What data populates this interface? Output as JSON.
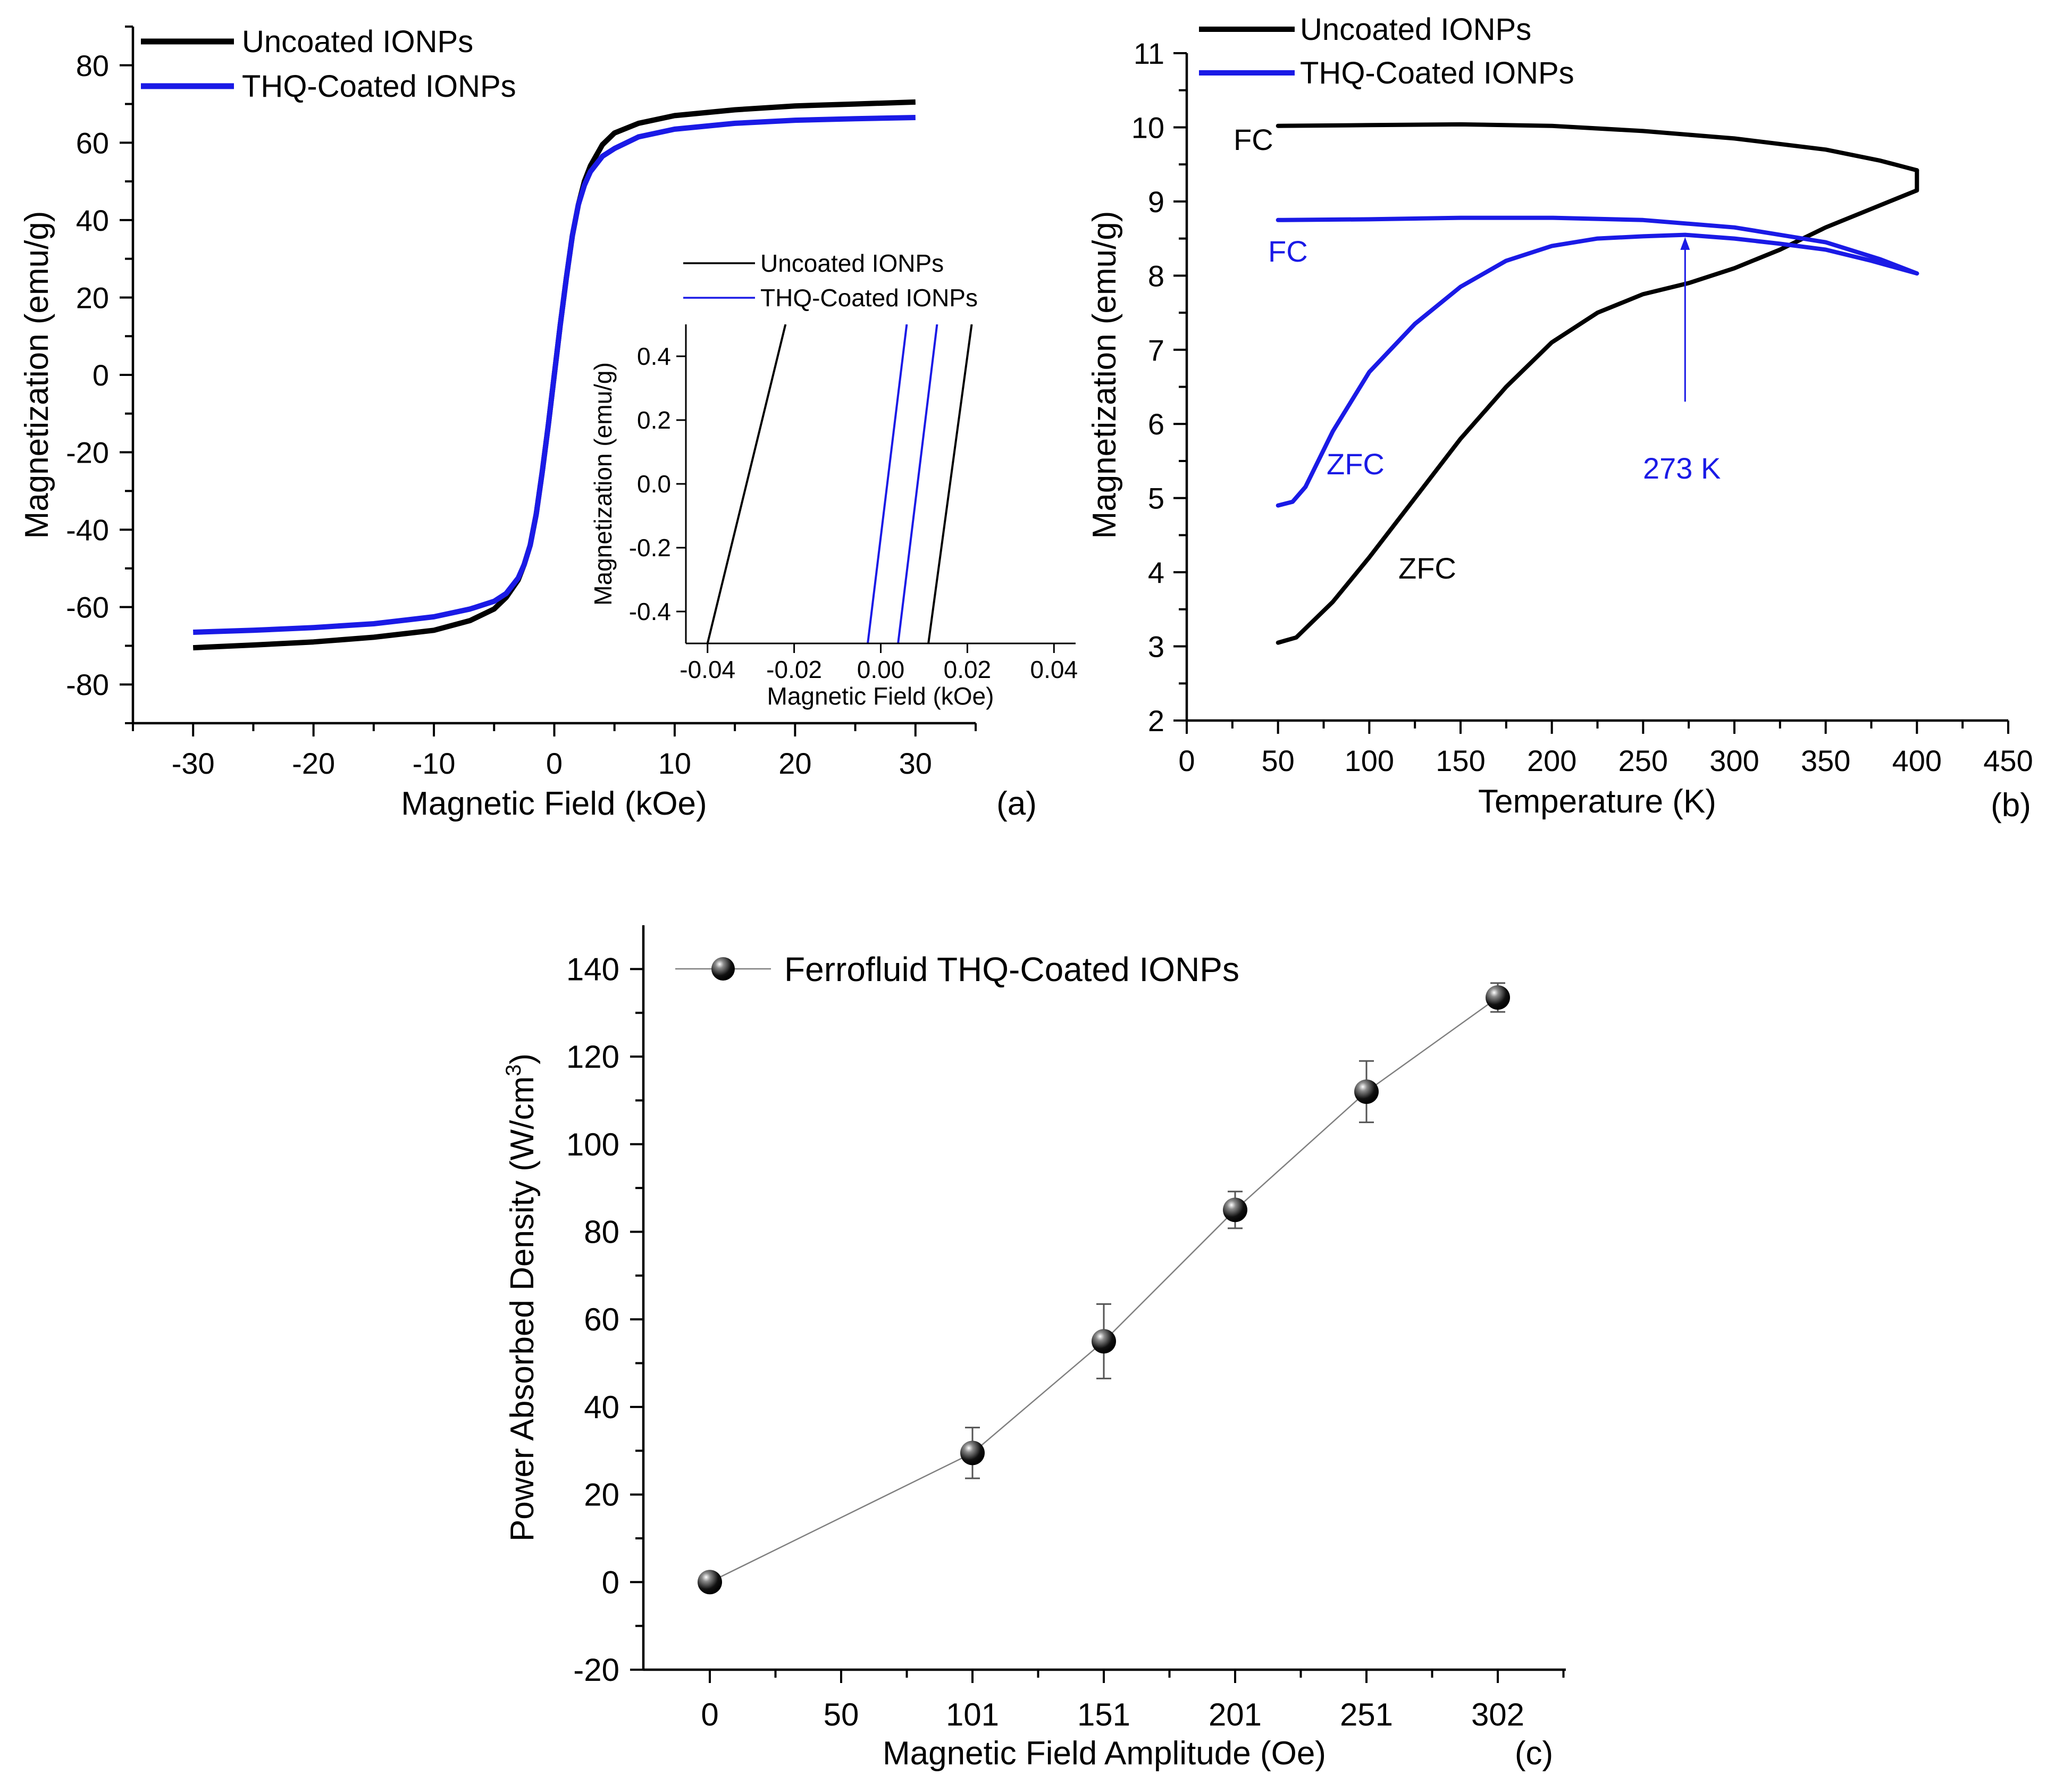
{
  "chart_data": [
    {
      "id": "a",
      "type": "line",
      "panel_label": "(a)",
      "xlabel": "Magnetic Field (kOe)",
      "ylabel": "Magnetization (emu/g)",
      "xlim": [
        -35,
        35
      ],
      "ylim": [
        -90,
        90
      ],
      "xticks": [
        -30,
        -20,
        -10,
        0,
        10,
        20,
        30
      ],
      "yticks": [
        -80,
        -60,
        -40,
        -20,
        0,
        20,
        40,
        60,
        80
      ],
      "legend_position": "top-left",
      "series": [
        {
          "name": "Uncoated IONPs",
          "color": "#000000",
          "x": [
            -30,
            -25,
            -20,
            -15,
            -10,
            -7,
            -5,
            -4,
            -3,
            -2.5,
            -2,
            -1.5,
            -1,
            -0.5,
            0,
            0.5,
            1,
            1.5,
            2,
            2.5,
            3,
            4,
            5,
            7,
            10,
            15,
            20,
            25,
            30
          ],
          "y": [
            -70.5,
            -69.8,
            -69,
            -67.8,
            -66,
            -63.5,
            -60.5,
            -57.5,
            -53,
            -49,
            -44,
            -36,
            -25,
            -13,
            0,
            13,
            25,
            36,
            44,
            50,
            54,
            59.5,
            62.5,
            65,
            67,
            68.5,
            69.5,
            70,
            70.5
          ]
        },
        {
          "name": "THQ-Coated IONPs",
          "color": "#1a1ae6",
          "x": [
            -30,
            -25,
            -20,
            -15,
            -10,
            -7,
            -5,
            -4,
            -3,
            -2.5,
            -2,
            -1.5,
            -1,
            -0.5,
            0,
            0.5,
            1,
            1.5,
            2,
            2.5,
            3,
            4,
            5,
            7,
            10,
            15,
            20,
            25,
            30
          ],
          "y": [
            -66.5,
            -66,
            -65.3,
            -64.3,
            -62.5,
            -60.5,
            -58.5,
            -56.5,
            -52.5,
            -49,
            -44,
            -36,
            -25,
            -13,
            0,
            13,
            25,
            36,
            44,
            49,
            52.5,
            56.5,
            58.5,
            61.5,
            63.5,
            65,
            65.8,
            66.2,
            66.5
          ]
        }
      ],
      "inset": {
        "xlabel": "Magnetic Field (kOe)",
        "ylabel": "Magnetization (emu/g)",
        "xlim": [
          -0.045,
          0.045
        ],
        "ylim": [
          -0.5,
          0.5
        ],
        "xticks": [
          -0.04,
          -0.02,
          0.0,
          0.02,
          0.04
        ],
        "xtick_labels": [
          "-0.04",
          "-0.02",
          "0.00",
          "0.02",
          "0.04"
        ],
        "yticks": [
          -0.4,
          -0.2,
          0.0,
          0.2,
          0.4
        ],
        "ytick_labels": [
          "-0.4",
          "-0.2",
          "0.0",
          "0.2",
          "0.4"
        ],
        "legend": [
          "Uncoated IONPs",
          "THQ-Coated IONPs"
        ],
        "lines": [
          {
            "series": "Uncoated IONPs",
            "color": "#000000",
            "x": [
              -0.04,
              -0.022
            ],
            "y": [
              -0.5,
              0.5
            ]
          },
          {
            "series": "Uncoated IONPs",
            "color": "#000000",
            "x": [
              0.011,
              0.021
            ],
            "y": [
              -0.5,
              0.5
            ]
          },
          {
            "series": "THQ-Coated IONPs",
            "color": "#1a1ae6",
            "x": [
              -0.003,
              0.006
            ],
            "y": [
              -0.5,
              0.5
            ]
          },
          {
            "series": "THQ-Coated IONPs",
            "color": "#1a1ae6",
            "x": [
              0.004,
              0.013
            ],
            "y": [
              -0.5,
              0.5
            ]
          }
        ]
      }
    },
    {
      "id": "b",
      "type": "line",
      "panel_label": "(b)",
      "xlabel": "Temperature (K)",
      "ylabel": "Magnetization (emu/g)",
      "xlim": [
        0,
        450
      ],
      "ylim": [
        2,
        11
      ],
      "xticks": [
        0,
        50,
        100,
        150,
        200,
        250,
        300,
        350,
        400,
        450
      ],
      "yticks": [
        2,
        3,
        4,
        5,
        6,
        7,
        8,
        9,
        10,
        11
      ],
      "legend_position": "top-left",
      "legend": [
        "Uncoated IONPs",
        "THQ-Coated IONPs"
      ],
      "series": [
        {
          "name": "Uncoated IONPs FC",
          "color": "#000000",
          "x": [
            50,
            100,
            150,
            200,
            250,
            300,
            350,
            380,
            400
          ],
          "y": [
            10.02,
            10.03,
            10.04,
            10.02,
            9.95,
            9.85,
            9.7,
            9.55,
            9.42
          ]
        },
        {
          "name": "Uncoated IONPs ZFC",
          "color": "#000000",
          "x": [
            50,
            60,
            80,
            100,
            125,
            150,
            175,
            200,
            225,
            250,
            275,
            300,
            325,
            350,
            375,
            400,
            400
          ],
          "y": [
            3.05,
            3.12,
            3.6,
            4.2,
            5.0,
            5.8,
            6.5,
            7.1,
            7.5,
            7.75,
            7.9,
            8.1,
            8.35,
            8.65,
            8.9,
            9.15,
            9.42
          ]
        },
        {
          "name": "THQ-Coated IONPs FC",
          "color": "#1a1ae6",
          "x": [
            50,
            100,
            150,
            200,
            250,
            300,
            350,
            380,
            400
          ],
          "y": [
            8.75,
            8.76,
            8.78,
            8.78,
            8.75,
            8.65,
            8.45,
            8.22,
            8.03
          ]
        },
        {
          "name": "THQ-Coated IONPs ZFC",
          "color": "#1a1ae6",
          "x": [
            50,
            58,
            65,
            80,
            100,
            125,
            150,
            175,
            200,
            225,
            250,
            273,
            300,
            325,
            350,
            375,
            400
          ],
          "y": [
            4.9,
            4.95,
            5.15,
            5.9,
            6.7,
            7.35,
            7.85,
            8.2,
            8.4,
            8.5,
            8.53,
            8.55,
            8.5,
            8.43,
            8.35,
            8.2,
            8.03
          ]
        }
      ],
      "annotations": [
        {
          "text": "FC",
          "color": "#000000"
        },
        {
          "text": "FC",
          "color": "#1a1ae6"
        },
        {
          "text": "ZFC",
          "color": "#1a1ae6"
        },
        {
          "text": "ZFC",
          "color": "#000000"
        },
        {
          "text": "273 K",
          "color": "#1a1ae6",
          "x": 273,
          "y_from": 6.3,
          "y_to": 8.52
        }
      ]
    },
    {
      "id": "c",
      "type": "scatter",
      "panel_label": "(c)",
      "xlabel": "Magnetic Field Amplitude (Oe)",
      "ylabel": "Power Absorbed Density (W/cm",
      "ylabel_superscript": "3",
      "ylabel_suffix": ")",
      "ylim": [
        -20,
        150
      ],
      "yticks": [
        -20,
        0,
        20,
        40,
        60,
        80,
        100,
        120,
        140
      ],
      "xtick_labels": [
        "0",
        "50",
        "101",
        "151",
        "201",
        "251",
        "302"
      ],
      "legend_position": "top-left",
      "series": [
        {
          "name": "Ferrofluid THQ-Coated IONPs",
          "color": "#000000",
          "x_index": [
            0,
            2,
            3,
            4,
            5,
            6
          ],
          "x": [
            0,
            101,
            151,
            201,
            251,
            302
          ],
          "y": [
            0,
            29.5,
            55,
            85,
            112,
            133.5
          ],
          "error": [
            0,
            5.8,
            8.5,
            4.2,
            7.0,
            3.3
          ]
        }
      ]
    }
  ]
}
